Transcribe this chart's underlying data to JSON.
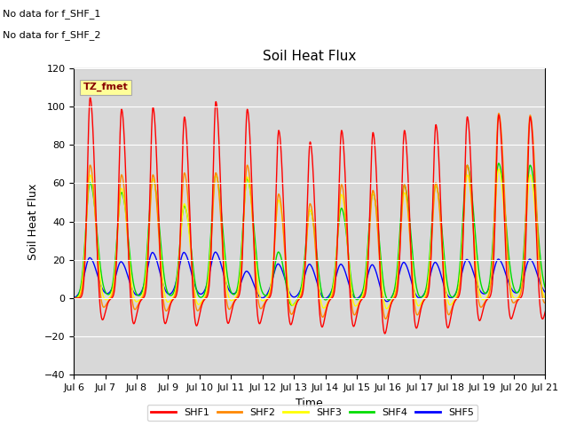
{
  "title": "Soil Heat Flux",
  "xlabel": "Time",
  "ylabel": "Soil Heat Flux",
  "ylim": [
    -40,
    120
  ],
  "yticks": [
    -40,
    -20,
    0,
    20,
    40,
    60,
    80,
    100,
    120
  ],
  "xtick_labels": [
    "Jul 6",
    "Jul 7",
    "Jul 8",
    "Jul 9",
    "Jul 10",
    "Jul 11",
    "Jul 12",
    "Jul 13",
    "Jul 14",
    "Jul 15",
    "Jul 16",
    "Jul 17",
    "Jul 18",
    "Jul 19",
    "Jul 20",
    "Jul 21"
  ],
  "colors": {
    "SHF1": "#ff0000",
    "SHF2": "#ff8800",
    "SHF3": "#ffff00",
    "SHF4": "#00dd00",
    "SHF5": "#0000ff"
  },
  "bg_color": "#d8d8d8",
  "annotation_text": "TZ_fmet",
  "annotation_color": "#880000",
  "annotation_bg": "#ffff99",
  "no_data_text1": "No data for f_SHF_1",
  "no_data_text2": "No data for f_SHF_2",
  "linewidth": 1.0,
  "shf1_peaks": [
    105,
    99,
    100,
    95,
    103,
    99,
    88,
    82,
    88,
    87,
    88,
    91,
    95,
    96,
    95
  ],
  "shf2_peaks": [
    70,
    65,
    65,
    66,
    66,
    70,
    55,
    50,
    60,
    57,
    60,
    61,
    70,
    97,
    96
  ],
  "shf3_peaks": [
    65,
    58,
    63,
    50,
    65,
    64,
    52,
    47,
    55,
    56,
    56,
    60,
    65,
    68,
    65
  ],
  "shf4_peaks": [
    61,
    56,
    63,
    49,
    65,
    63,
    25,
    47,
    48,
    56,
    60,
    60,
    70,
    71,
    70
  ],
  "shf5_peaks": [
    22,
    20,
    25,
    25,
    25,
    15,
    19,
    19,
    19,
    19,
    20,
    20,
    21,
    21,
    21
  ],
  "shf1_troughs": [
    -18,
    -20,
    -20,
    -21,
    -20,
    -20,
    -20,
    -21,
    -21,
    -25,
    -22,
    -22,
    -18,
    -17,
    -17
  ],
  "shf2_troughs": [
    -14,
    -15,
    -16,
    -16,
    -15,
    -15,
    -17,
    -18,
    -18,
    -20,
    -18,
    -18,
    -14,
    -13,
    -13
  ],
  "shf3_troughs": [
    -11,
    -12,
    -13,
    -13,
    -12,
    -12,
    -14,
    -15,
    -15,
    -17,
    -15,
    -15,
    -11,
    -10,
    -10
  ],
  "shf4_troughs": [
    -8,
    -9,
    -10,
    -10,
    -9,
    -9,
    -11,
    -12,
    -12,
    -14,
    -12,
    -12,
    -8,
    -7,
    -7
  ],
  "shf5_troughs": [
    -5,
    -6,
    -7,
    -7,
    -6,
    -6,
    -7,
    -8,
    -8,
    -10,
    -8,
    -8,
    -5,
    -4,
    -4
  ]
}
